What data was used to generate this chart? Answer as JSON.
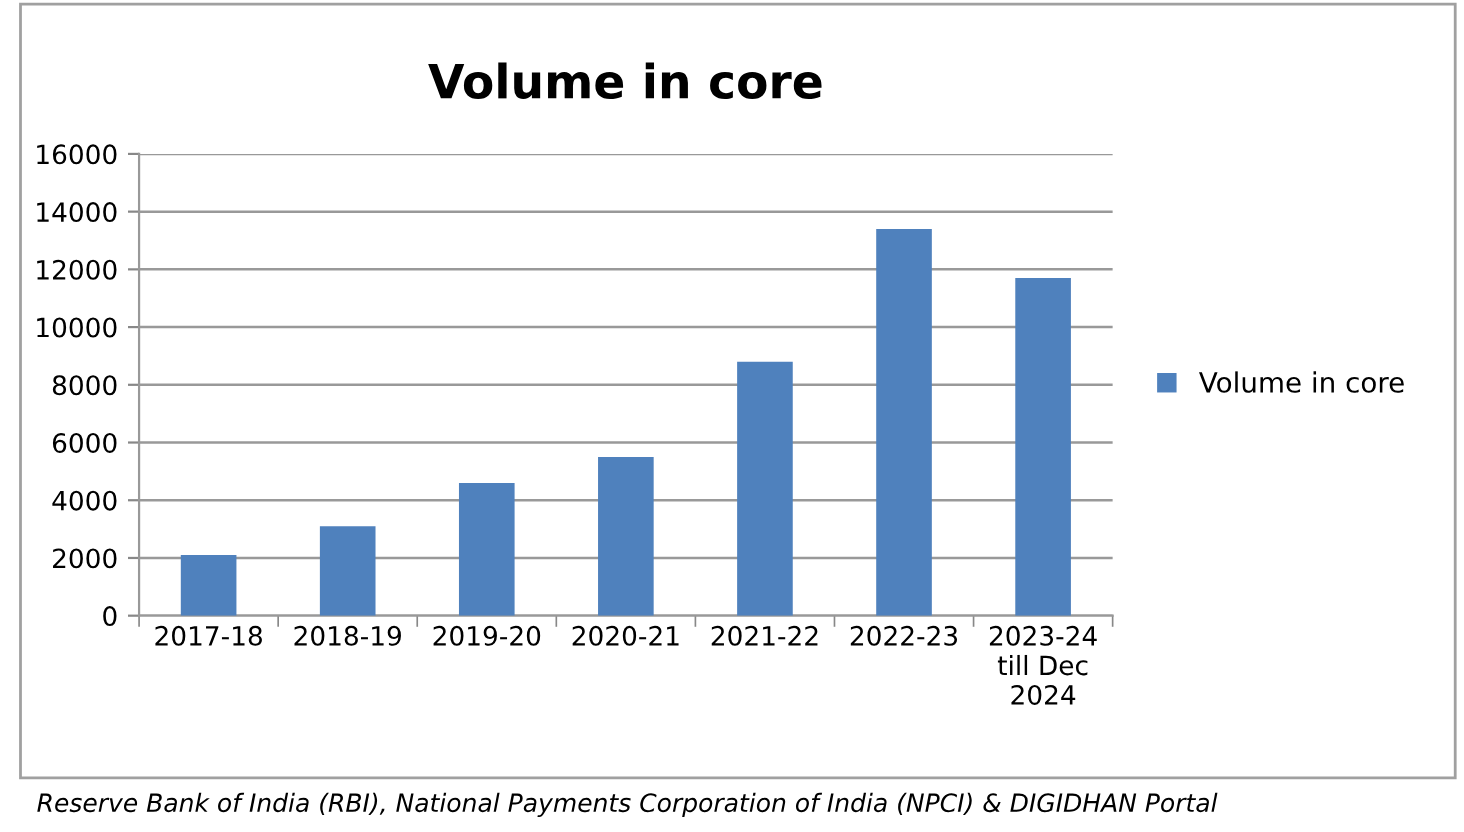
{
  "chart_data": {
    "type": "bar",
    "title": "Volume in core",
    "categories": [
      "2017-18",
      "2018-19",
      "2019-20",
      "2020-21",
      "2021-22",
      "2022-23",
      "2023-24\ntill Dec\n2024"
    ],
    "series": [
      {
        "name": "Volume in core",
        "color": "#4f81bd",
        "values": [
          2100,
          3100,
          4600,
          5500,
          8800,
          13400,
          11700
        ]
      }
    ],
    "ylim": [
      0,
      16000
    ],
    "yticks": [
      0,
      2000,
      4000,
      6000,
      8000,
      10000,
      12000,
      14000,
      16000
    ],
    "grid": "y",
    "legend": "right",
    "annotations": [
      "Reserve Bank of India (RBI), National Payments Corporation of India (NPCI) & DIGIDHAN Portal"
    ]
  }
}
